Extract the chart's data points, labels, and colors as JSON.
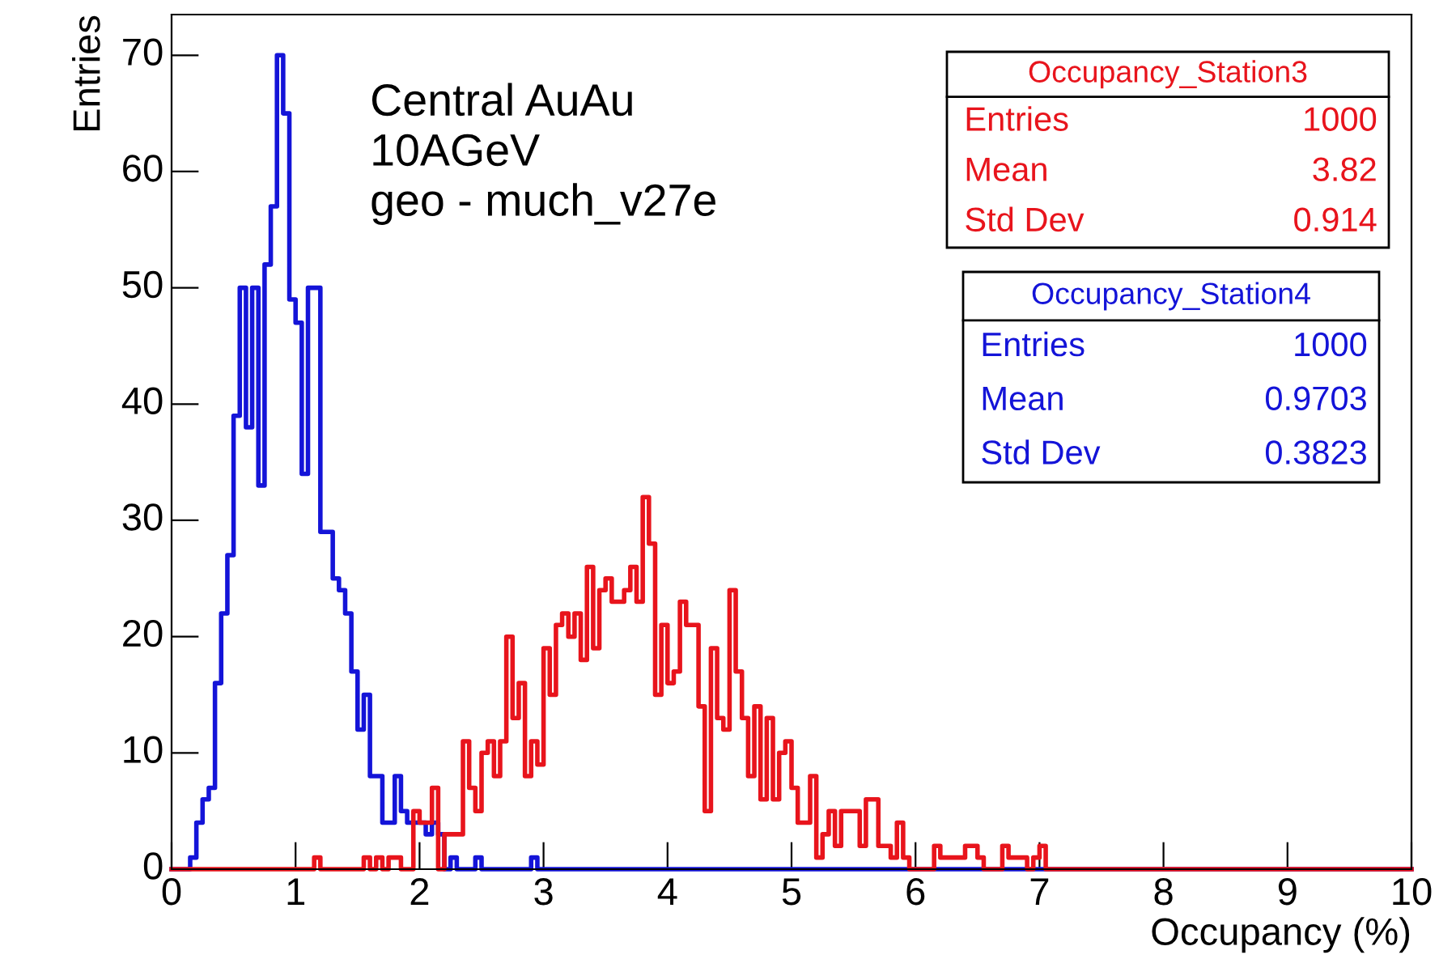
{
  "chart_data": {
    "type": "histogram",
    "xlabel": "Occupancy (%)",
    "ylabel": "Entries",
    "xlim": [
      0,
      10
    ],
    "ylim": [
      0,
      73.5
    ],
    "xticks": [
      0,
      1,
      2,
      3,
      4,
      5,
      6,
      7,
      8,
      9,
      10
    ],
    "yticks": [
      0,
      10,
      20,
      30,
      40,
      50,
      60,
      70
    ],
    "grid": false,
    "legend": "top right",
    "bins": [
      0,
      0.05,
      0.1,
      0.15,
      0.2,
      0.25,
      0.3,
      0.35,
      0.4,
      0.45,
      0.5,
      0.55,
      0.6,
      0.65,
      0.7,
      0.75,
      0.8,
      0.85,
      0.9,
      0.95,
      1,
      1.05,
      1.1,
      1.15,
      1.2,
      1.25,
      1.3,
      1.35,
      1.4,
      1.45,
      1.5,
      1.55,
      1.6,
      1.65,
      1.7,
      1.75,
      1.8,
      1.85,
      1.9,
      1.95,
      2,
      2.05,
      2.1,
      2.15,
      2.2,
      2.25,
      2.3,
      2.35,
      2.4,
      2.45,
      2.5,
      2.55,
      2.6,
      2.65,
      2.7,
      2.75,
      2.8,
      2.85,
      2.9,
      2.95,
      3,
      3.05,
      3.1,
      3.15,
      3.2,
      3.25,
      3.3,
      3.35,
      3.4,
      3.45,
      3.5,
      3.55,
      3.6,
      3.65,
      3.7,
      3.75,
      3.8,
      3.85,
      3.9,
      3.95,
      4,
      4.05,
      4.1,
      4.15,
      4.2,
      4.25,
      4.3,
      4.35,
      4.4,
      4.45,
      4.5,
      4.55,
      4.6,
      4.65,
      4.7,
      4.75,
      4.8,
      4.85,
      4.9,
      4.95,
      5,
      5.05,
      5.1,
      5.15,
      5.2,
      5.25,
      5.3,
      5.35,
      5.4,
      5.45,
      5.5,
      5.55,
      5.6,
      5.65,
      5.7,
      5.75,
      5.8,
      5.85,
      5.9,
      5.95,
      6,
      6.05,
      6.1,
      6.15,
      6.2,
      6.25,
      6.3,
      6.35,
      6.4,
      6.45,
      6.5,
      6.55,
      6.6,
      6.65,
      6.7,
      6.75,
      6.8,
      6.85,
      6.9,
      6.95,
      7,
      7.05,
      7.1,
      7.15,
      7.2,
      7.25,
      7.3,
      7.35,
      7.4,
      7.45,
      7.5,
      7.55,
      7.6,
      7.65,
      7.7,
      7.75,
      7.8,
      7.85,
      7.9,
      7.95,
      8,
      8.05,
      8.1,
      8.15,
      8.2,
      8.25,
      8.3,
      8.35,
      8.4,
      8.45,
      8.5,
      8.55,
      8.6,
      8.65,
      8.7,
      8.75,
      8.8,
      8.85,
      8.9,
      8.95,
      9,
      9.05,
      9.1,
      9.15,
      9.2,
      9.25,
      9.3,
      9.35,
      9.4,
      9.45,
      9.5,
      9.55,
      9.6,
      9.65,
      9.7,
      9.75,
      9.8,
      9.85,
      9.9,
      9.95,
      10
    ],
    "series": [
      {
        "name": "Occupancy_Station3",
        "color": "#e8141c",
        "values": [
          0,
          0,
          0,
          0,
          0,
          0,
          0,
          0,
          0,
          0,
          0,
          0,
          0,
          0,
          0,
          0,
          0,
          0,
          0,
          0,
          0,
          0,
          0,
          1,
          0,
          0,
          0,
          0,
          0,
          0,
          0,
          1,
          0,
          1,
          0,
          1,
          1,
          0,
          0,
          5,
          4,
          4,
          7,
          0,
          3,
          3,
          3,
          11,
          7,
          5,
          10,
          11,
          8,
          11,
          20,
          13,
          16,
          8,
          11,
          9,
          19,
          15,
          21,
          22,
          20,
          22,
          18,
          26,
          19,
          24,
          25,
          23,
          23,
          24,
          26,
          23,
          32,
          28,
          15,
          21,
          16,
          17,
          23,
          21,
          21,
          14,
          5,
          19,
          13,
          12,
          24,
          17,
          13,
          8,
          14,
          6,
          13,
          6,
          10,
          11,
          7,
          4,
          4,
          8,
          1,
          3,
          5,
          2,
          5,
          5,
          5,
          2,
          6,
          6,
          2,
          2,
          1,
          4,
          1,
          0,
          0,
          0,
          0,
          2,
          1,
          1,
          1,
          1,
          2,
          2,
          1,
          0,
          0,
          0,
          2,
          1,
          1,
          1,
          0,
          1,
          2,
          0,
          0,
          0,
          0,
          0,
          0,
          0,
          0,
          0,
          0,
          0,
          0,
          0,
          0,
          0,
          0,
          0,
          0,
          0,
          0,
          0,
          0,
          0,
          0,
          0,
          0,
          0,
          0,
          0,
          0,
          0,
          0,
          0,
          0,
          0,
          0,
          0,
          0,
          0,
          0,
          0,
          0,
          0,
          0,
          0,
          0,
          0,
          0,
          0,
          0,
          0,
          0,
          0,
          0,
          0,
          0,
          0,
          0,
          0
        ]
      },
      {
        "name": "Occupancy_Station4",
        "color": "#1414d8",
        "values": [
          0,
          0,
          0,
          1,
          4,
          6,
          7,
          16,
          22,
          27,
          39,
          50,
          38,
          50,
          33,
          52,
          57,
          70,
          65,
          49,
          47,
          34,
          50,
          50,
          29,
          29,
          25,
          24,
          22,
          17,
          12,
          15,
          8,
          8,
          4,
          4,
          8,
          5,
          4,
          4,
          4,
          3,
          4,
          3,
          0,
          1,
          0,
          0,
          0,
          1,
          0,
          0,
          0,
          0,
          0,
          0,
          0,
          0,
          1,
          0,
          0,
          0,
          0,
          0,
          0,
          0,
          0,
          0,
          0,
          0,
          0,
          0,
          0,
          0,
          0,
          0,
          0,
          0,
          0,
          0,
          0,
          0,
          0,
          0,
          0,
          0,
          0,
          0,
          0,
          0,
          0,
          0,
          0,
          0,
          0,
          0,
          0,
          0,
          0,
          0,
          0,
          0,
          0,
          0,
          0,
          0,
          0,
          0,
          0,
          0,
          0,
          0,
          0,
          0,
          0,
          0,
          0,
          0,
          0,
          0,
          0,
          0,
          0,
          0,
          0,
          0,
          0,
          0,
          0,
          0,
          0,
          0,
          0,
          0,
          0,
          0,
          0,
          0,
          0,
          0,
          0,
          0,
          0,
          0,
          0,
          0,
          0,
          0,
          0,
          0,
          0,
          0,
          0,
          0,
          0,
          0,
          0,
          0,
          0,
          0,
          0,
          0,
          0,
          0,
          0,
          0,
          0,
          0,
          0,
          0,
          0,
          0,
          0,
          0,
          0,
          0,
          0,
          0,
          0,
          0,
          0,
          0,
          0,
          0,
          0,
          0,
          0,
          0,
          0,
          0,
          0,
          0,
          0,
          0,
          0,
          0,
          0,
          0,
          0,
          0
        ]
      }
    ],
    "annotations": [
      "Central AuAu\n10AGeV\ngeo - much_v27e",
      "Entries",
      "1000",
      "Mean",
      "3.82",
      "Std Dev",
      "0.914",
      "Entries",
      "1000",
      "Mean",
      "0.9703",
      "Std Dev",
      "0.3823"
    ]
  }
}
